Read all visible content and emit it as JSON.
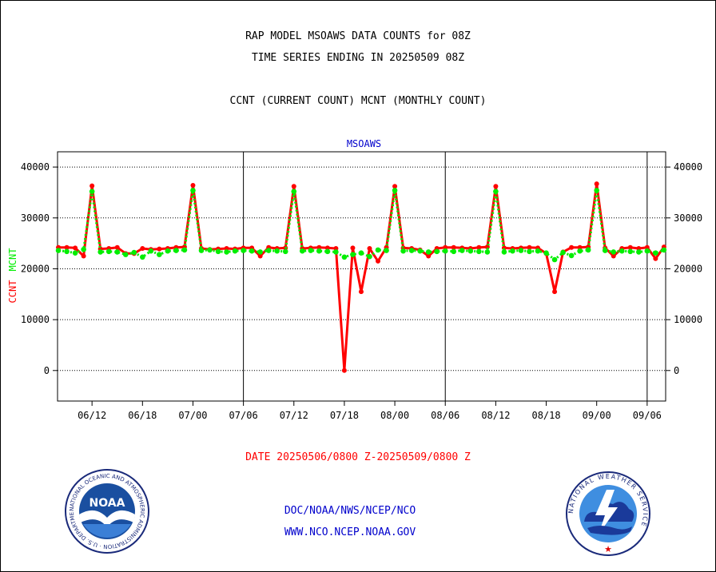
{
  "header": {
    "title_line1": "RAP MODEL MSOAWS DATA COUNTS for 08Z",
    "title_line2": "TIME SERIES ENDING IN 20250509 08Z",
    "subtitle": "CCNT (CURRENT COUNT) MCNT (MONTHLY COUNT)"
  },
  "footer": {
    "date_range": "DATE 20250506/0800 Z-20250509/0800 Z",
    "org_line": "DOC/NOAA/NWS/NCEP/NCO",
    "url_line": "WWW.NCO.NCEP.NOAA.GOV"
  },
  "logos": {
    "noaa_text": "NOAA",
    "noaa_ring_text": "NATIONAL OCEANIC AND ATMOSPHERIC ADMINISTRATION · U.S. DEPARTMENT OF COMMERCE ·",
    "nws_ring_text": "NATIONAL WEATHER SERVICE"
  },
  "colors": {
    "ccnt": "#ff0000",
    "mcnt": "#00ee00",
    "chart_title": "#0000cc",
    "footer_blue": "#0000cc",
    "footer_red": "#ff0000"
  },
  "chart_data": {
    "type": "line",
    "title": "MSOAWS",
    "ylabel_ccnt": "CCNT",
    "ylabel_mcnt": "MCNT",
    "ylim": [
      -6000,
      43000
    ],
    "yticks": [
      0,
      10000,
      20000,
      30000,
      40000
    ],
    "x_tick_labels": [
      "06/12",
      "06/18",
      "07/00",
      "07/06",
      "07/12",
      "07/18",
      "08/00",
      "08/06",
      "08/12",
      "08/18",
      "09/00",
      "09/06"
    ],
    "x_tick_hours": [
      12,
      18,
      24,
      30,
      36,
      42,
      48,
      54,
      60,
      66,
      72,
      78
    ],
    "x_range_hours": [
      7.9,
      80.2
    ],
    "day_boundaries_hours": [
      30,
      54,
      78
    ],
    "grid": "dotted horizontal",
    "series": [
      {
        "name": "CCNT",
        "x": [
          8,
          9,
          10,
          11,
          12,
          13,
          14,
          15,
          16,
          17,
          18,
          19,
          20,
          21,
          22,
          23,
          24,
          25,
          26,
          27,
          28,
          29,
          30,
          31,
          32,
          33,
          34,
          35,
          36,
          37,
          38,
          39,
          40,
          41,
          42,
          43,
          44,
          45,
          46,
          47,
          48,
          49,
          50,
          51,
          52,
          53,
          54,
          55,
          56,
          57,
          58,
          59,
          60,
          61,
          62,
          63,
          64,
          65,
          66,
          67,
          68,
          69,
          70,
          71,
          72,
          73,
          74,
          75,
          76,
          77,
          78,
          79,
          80
        ],
        "values": [
          24200,
          24200,
          24100,
          22500,
          36300,
          23900,
          24000,
          24200,
          23000,
          23000,
          24000,
          23800,
          23900,
          24000,
          24200,
          24300,
          36400,
          24000,
          23800,
          23900,
          24000,
          23900,
          24100,
          24100,
          22500,
          24200,
          24000,
          24100,
          36200,
          24000,
          24100,
          24200,
          24100,
          24000,
          0,
          24100,
          15500,
          24000,
          21500,
          24200,
          36200,
          24100,
          24000,
          23700,
          22500,
          24000,
          24200,
          24200,
          24100,
          24000,
          24200,
          24300,
          36200,
          24100,
          24000,
          24100,
          24200,
          24100,
          23000,
          15500,
          23300,
          24200,
          24200,
          24300,
          36700,
          24100,
          22500,
          24000,
          24200,
          24000,
          24200,
          22000,
          24300
        ]
      },
      {
        "name": "MCNT",
        "x": [
          8,
          9,
          10,
          11,
          12,
          13,
          14,
          15,
          16,
          17,
          18,
          19,
          20,
          21,
          22,
          23,
          24,
          25,
          26,
          27,
          28,
          29,
          30,
          31,
          32,
          33,
          34,
          35,
          36,
          37,
          38,
          39,
          40,
          41,
          42,
          43,
          44,
          45,
          46,
          47,
          48,
          49,
          50,
          51,
          52,
          53,
          54,
          55,
          56,
          57,
          58,
          59,
          60,
          61,
          62,
          63,
          64,
          65,
          66,
          67,
          68,
          69,
          70,
          71,
          72,
          73,
          74,
          75,
          76,
          77,
          78,
          79,
          80
        ],
        "values": [
          23600,
          23400,
          23100,
          23800,
          35200,
          23300,
          23400,
          23300,
          22800,
          23200,
          22300,
          23500,
          22800,
          23500,
          23600,
          23700,
          35400,
          23600,
          23700,
          23400,
          23300,
          23500,
          23600,
          23500,
          23300,
          23600,
          23500,
          23400,
          35200,
          23500,
          23600,
          23500,
          23400,
          23300,
          22300,
          22800,
          23100,
          22400,
          23700,
          23600,
          35400,
          23500,
          23600,
          23500,
          23300,
          23400,
          23500,
          23400,
          23600,
          23500,
          23400,
          23300,
          35200,
          23300,
          23500,
          23600,
          23400,
          23500,
          23100,
          21800,
          23200,
          22600,
          23500,
          23700,
          35400,
          23600,
          23300,
          23500,
          23400,
          23300,
          23500,
          23100,
          23700
        ]
      }
    ]
  }
}
